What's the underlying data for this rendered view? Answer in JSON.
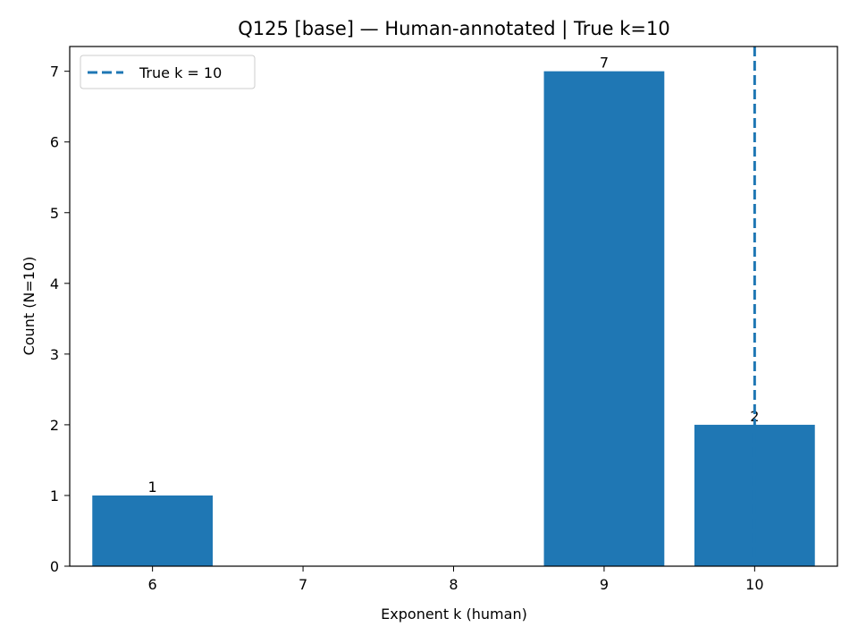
{
  "chart_data": {
    "type": "bar",
    "title": "Q125 [base] — Human-annotated | True k=10",
    "xlabel": "Exponent k (human)",
    "ylabel": "Count (N=10)",
    "categories": [
      "6",
      "7",
      "8",
      "9",
      "10"
    ],
    "values": [
      1,
      0,
      0,
      7,
      2
    ],
    "bar_labels": [
      "1",
      "",
      "",
      "7",
      "2"
    ],
    "yticks": [
      0,
      1,
      2,
      3,
      4,
      5,
      6,
      7
    ],
    "xlim": [
      5.45,
      10.55
    ],
    "ylim": [
      0,
      7.35
    ],
    "bar_width": 0.8,
    "bar_color": "#1f77b4",
    "reference_line": {
      "x": 10,
      "label": "True k = 10",
      "style": "dashed",
      "color": "#1f77b4"
    },
    "legend_position": "upper-left",
    "grid": false
  }
}
